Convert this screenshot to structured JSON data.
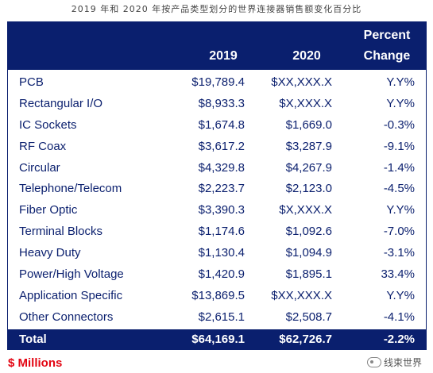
{
  "caption": "2019 年和 2020 年按产品类型划分的世界连接器销售额变化百分比",
  "header": {
    "col_2019": "2019",
    "col_2020": "2020",
    "col_change_line1": "Percent",
    "col_change_line2": "Change"
  },
  "rows": [
    {
      "name": "PCB",
      "v2019": "$19,789.4",
      "v2020": "$XX,XXX.X",
      "change": "Y.Y%"
    },
    {
      "name": "Rectangular I/O",
      "v2019": "$8,933.3",
      "v2020": "$X,XXX.X",
      "change": "Y.Y%"
    },
    {
      "name": "IC Sockets",
      "v2019": "$1,674.8",
      "v2020": "$1,669.0",
      "change": "-0.3%"
    },
    {
      "name": "RF Coax",
      "v2019": "$3,617.2",
      "v2020": "$3,287.9",
      "change": "-9.1%"
    },
    {
      "name": "Circular",
      "v2019": "$4,329.8",
      "v2020": "$4,267.9",
      "change": "-1.4%"
    },
    {
      "name": "Telephone/Telecom",
      "v2019": "$2,223.7",
      "v2020": "$2,123.0",
      "change": "-4.5%"
    },
    {
      "name": "Fiber Optic",
      "v2019": "$3,390.3",
      "v2020": "$X,XXX.X",
      "change": "Y.Y%"
    },
    {
      "name": "Terminal Blocks",
      "v2019": "$1,174.6",
      "v2020": "$1,092.6",
      "change": "-7.0%"
    },
    {
      "name": "Heavy Duty",
      "v2019": "$1,130.4",
      "v2020": "$1,094.9",
      "change": "-3.1%"
    },
    {
      "name": "Power/High Voltage",
      "v2019": "$1,420.9",
      "v2020": "$1,895.1",
      "change": "33.4%"
    },
    {
      "name": "Application Specific",
      "v2019": "$13,869.5",
      "v2020": "$XX,XXX.X",
      "change": "Y.Y%"
    },
    {
      "name": "Other Connectors",
      "v2019": "$2,615.1",
      "v2020": "$2,508.7",
      "change": "-4.1%"
    }
  ],
  "total": {
    "name": "Total",
    "v2019": "$64,169.1",
    "v2020": "$62,726.7",
    "change": "-2.2%"
  },
  "units_note": "$ Millions",
  "watermark": {
    "text": "线束世界",
    "icon": "wechat-icon"
  },
  "colors": {
    "header_bg": "#0a1f6e",
    "text": "#0a1f6e",
    "units": "#e30613"
  }
}
